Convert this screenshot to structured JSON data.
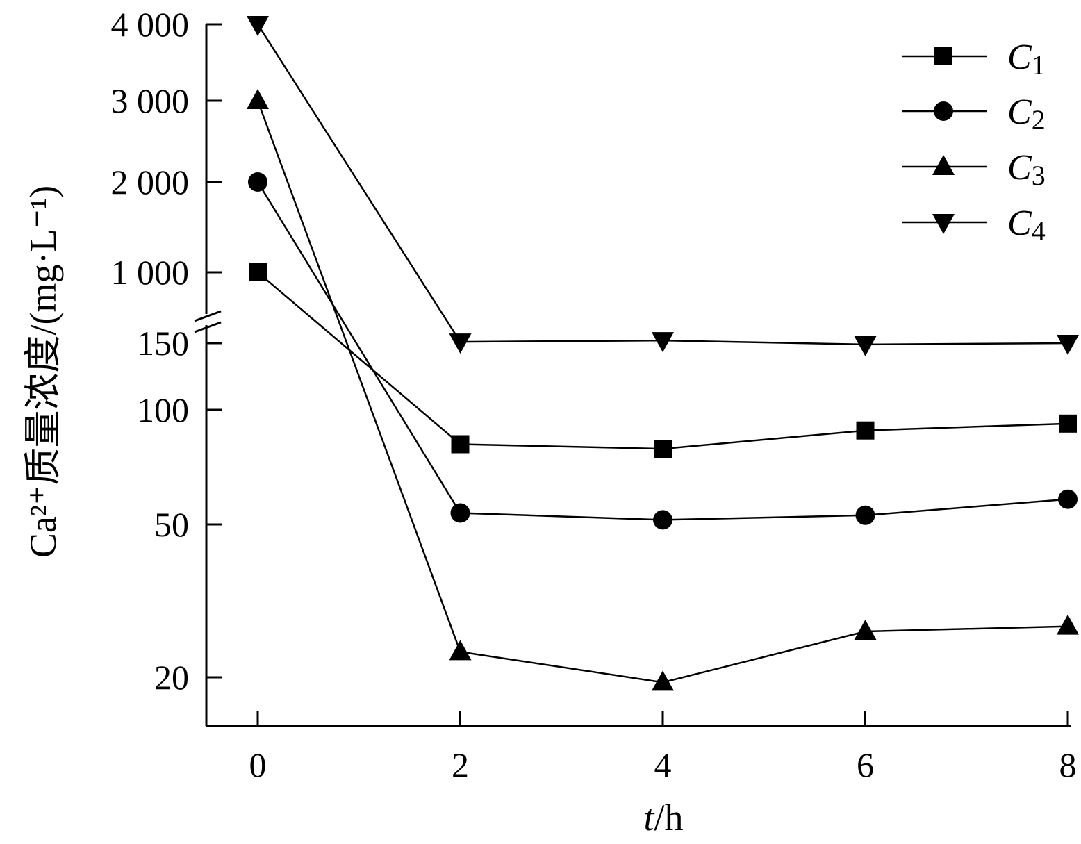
{
  "chart_data": {
    "type": "line",
    "xlabel_italic": "t",
    "xlabel_rest": "/h",
    "ylabel": "Ca²⁺质量浓度/(mg·L⁻¹)",
    "x": [
      0,
      2,
      4,
      6,
      8
    ],
    "x_ticks": [
      "0",
      "2",
      "4",
      "6",
      "8"
    ],
    "xlim": [
      -0.5,
      8
    ],
    "y_axis_broken": true,
    "y_upper_ticks": [
      "4 000",
      "3 000",
      "2 000",
      "1 000"
    ],
    "y_lower_ticks": [
      "150",
      "100",
      "50",
      "20"
    ],
    "grid": false,
    "legend_position": "top-right",
    "series": [
      {
        "name": "C1",
        "label_letter": "C",
        "label_sub": "1",
        "marker": "square",
        "values": [
          1000,
          85,
          83,
          91,
          94
        ]
      },
      {
        "name": "C2",
        "label_letter": "C",
        "label_sub": "2",
        "marker": "circle",
        "values": [
          2000,
          55,
          52,
          54,
          61
        ]
      },
      {
        "name": "C3",
        "label_letter": "C",
        "label_sub": "3",
        "marker": "triangle-up",
        "values": [
          3000,
          25,
          19,
          29,
          30
        ]
      },
      {
        "name": "C4",
        "label_letter": "C",
        "label_sub": "4",
        "marker": "triangle-down",
        "values": [
          4000,
          151,
          152,
          149,
          150
        ]
      }
    ]
  }
}
